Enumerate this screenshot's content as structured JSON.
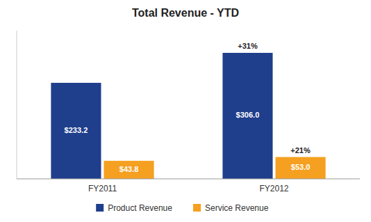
{
  "chart_data": {
    "type": "bar",
    "title": "Total Revenue - YTD",
    "categories": [
      "FY2011",
      "FY2012"
    ],
    "series": [
      {
        "name": "Product Revenue",
        "color": "#1f3e8c",
        "values": [
          233.2,
          306.0
        ],
        "value_labels": [
          "$233.2",
          "$306.0"
        ]
      },
      {
        "name": "Service Revenue",
        "color": "#f5a020",
        "values": [
          43.8,
          53.0
        ],
        "value_labels": [
          "$43.8",
          "$53.0"
        ]
      }
    ],
    "annotations": [
      {
        "text": "+31%",
        "category": "FY2012",
        "series": "Product Revenue"
      },
      {
        "text": "+21%",
        "category": "FY2012",
        "series": "Service Revenue"
      }
    ],
    "ylim": [
      0,
      360
    ],
    "tick_labels": "x",
    "data_labels": true,
    "grid": false,
    "legend": "bottom"
  }
}
